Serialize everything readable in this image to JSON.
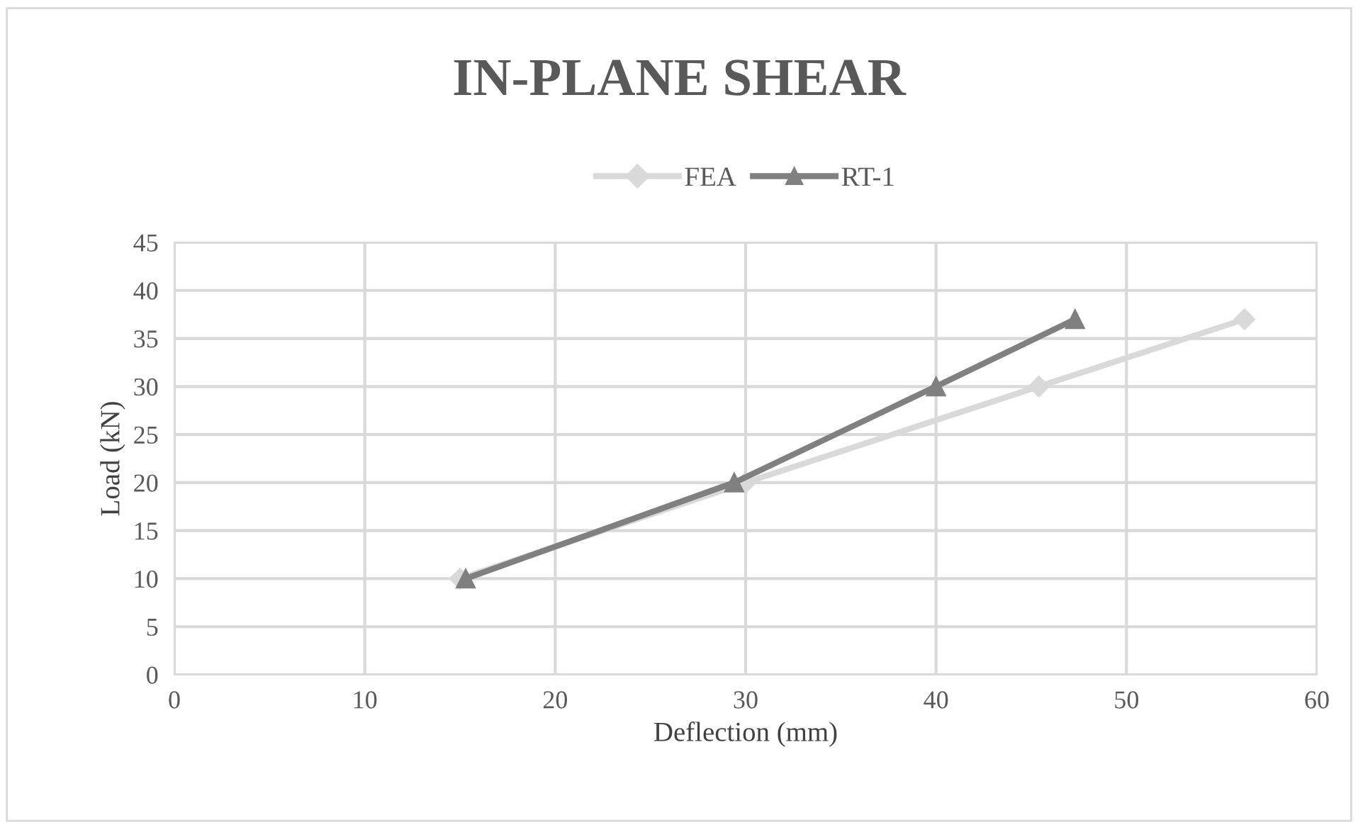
{
  "chart_data": {
    "type": "line",
    "title": "IN-PLANE SHEAR",
    "xlabel": "Deflection (mm)",
    "ylabel": "Load (kN)",
    "series": [
      {
        "name": "FEA",
        "color": "#d9d9d9",
        "marker": "diamond",
        "x": [
          15,
          30,
          45.4,
          56.2
        ],
        "values": [
          10,
          20,
          30,
          37
        ]
      },
      {
        "name": "RT-1",
        "color": "#808080",
        "marker": "triangle",
        "x": [
          15.3,
          29.4,
          40,
          47.3
        ],
        "values": [
          10,
          20,
          30,
          37
        ]
      }
    ],
    "xlim": [
      0,
      60
    ],
    "xticks": [
      0,
      10,
      20,
      30,
      40,
      50,
      60
    ],
    "ylim": [
      0,
      45
    ],
    "yticks": [
      0,
      5,
      10,
      15,
      20,
      25,
      30,
      35,
      40,
      45
    ],
    "grid": true,
    "legend": "top"
  }
}
